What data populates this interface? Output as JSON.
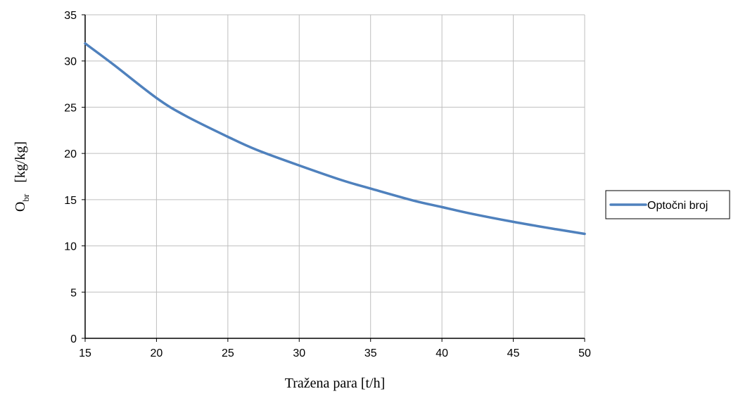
{
  "chart_data": {
    "type": "line",
    "title": "",
    "xlabel": "Tražena para [t/h]",
    "ylabel_main": "O",
    "ylabel_sub": "br",
    "ylabel_unit": "[kg/kg]",
    "xlim": [
      15,
      50
    ],
    "ylim": [
      0,
      35
    ],
    "xticks": [
      15,
      20,
      25,
      30,
      35,
      40,
      45,
      50
    ],
    "yticks": [
      0,
      5,
      10,
      15,
      20,
      25,
      30,
      35
    ],
    "grid": true,
    "legend_position": "right",
    "series": [
      {
        "name": "Optočni broj",
        "color": "#4f81bd",
        "x": [
          15,
          17,
          20,
          22,
          25,
          27,
          30,
          33,
          35,
          38,
          40,
          42,
          45,
          48,
          50
        ],
        "y": [
          31.9,
          29.6,
          26.0,
          24.1,
          21.8,
          20.4,
          18.7,
          17.1,
          16.2,
          14.9,
          14.2,
          13.5,
          12.6,
          11.8,
          11.3
        ]
      }
    ]
  }
}
